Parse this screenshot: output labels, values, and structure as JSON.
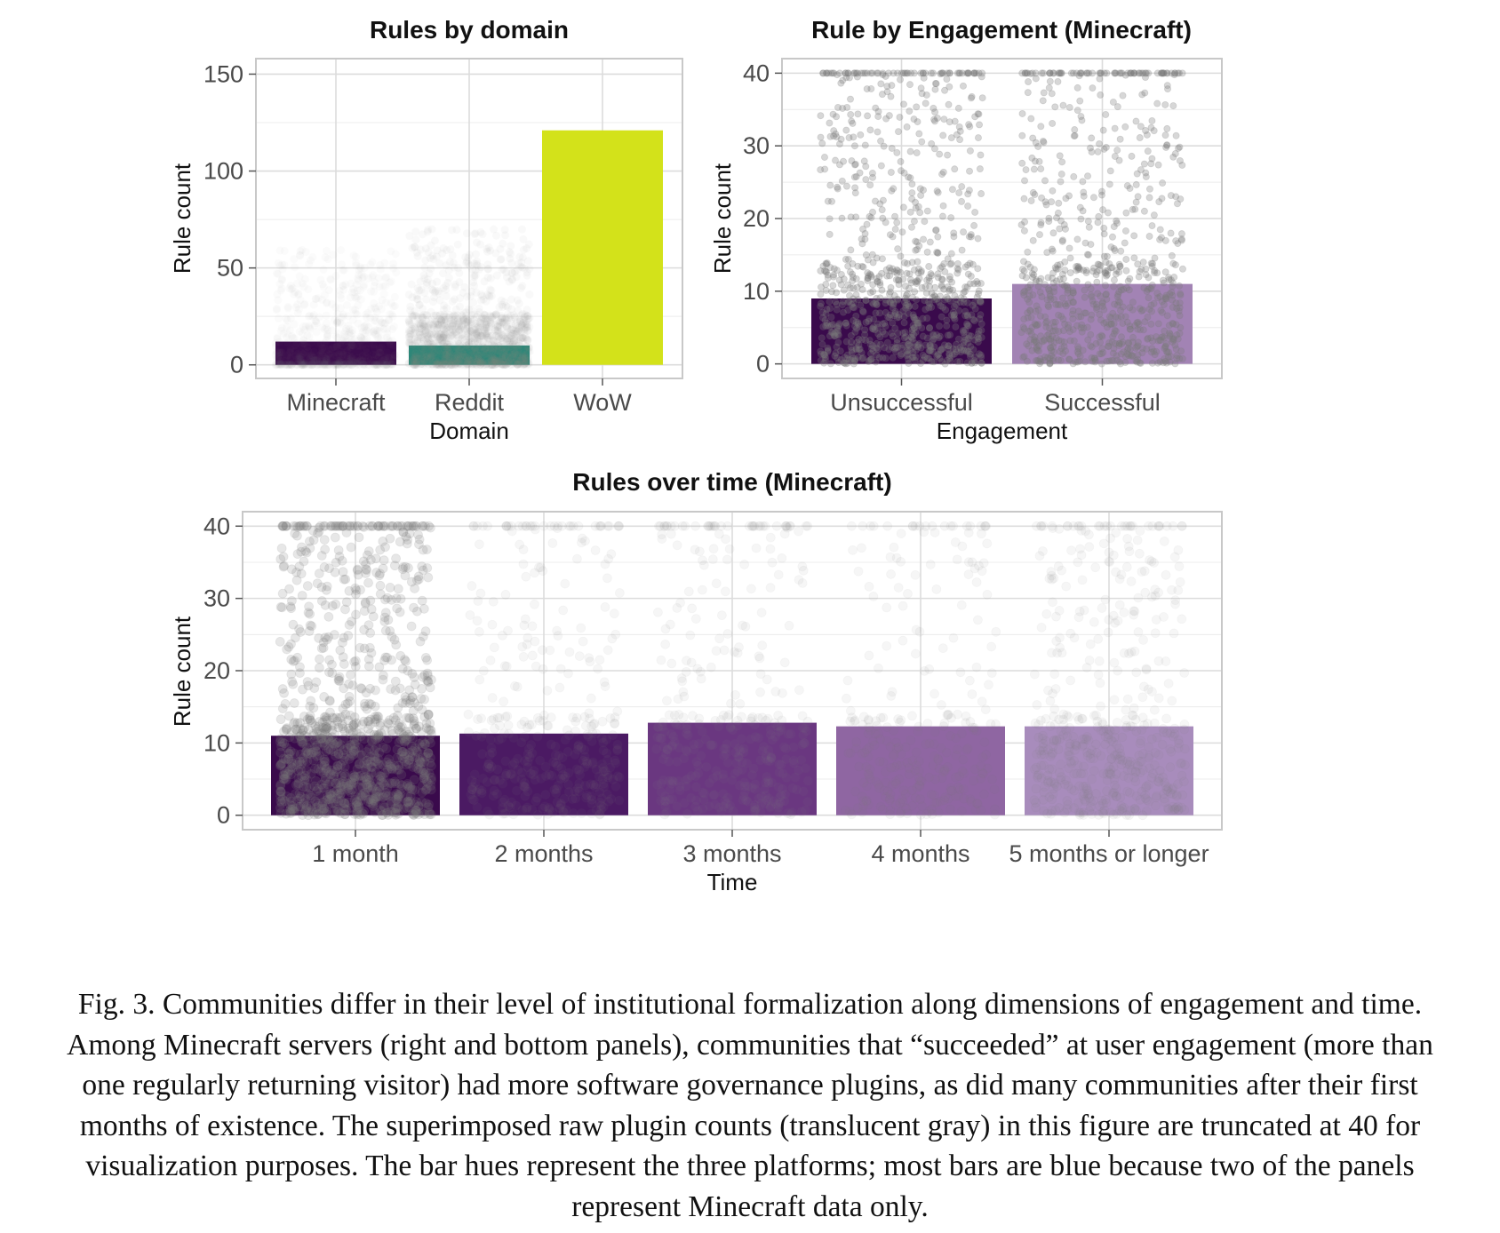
{
  "chart_data": [
    {
      "type": "bar",
      "title": "Rules by domain",
      "xlabel": "Domain",
      "ylabel": "Rule count",
      "categories": [
        "Minecraft",
        "Reddit",
        "WoW"
      ],
      "values": [
        12,
        10,
        121
      ],
      "colors": [
        "#3a0a4c",
        "#1f8778",
        "#d3e21a"
      ],
      "ylim": [
        -7,
        158
      ],
      "yticks": [
        0,
        50,
        100,
        150
      ],
      "overlay": "translucent gray raw counts",
      "grid": true
    },
    {
      "type": "bar",
      "title": "Rule by Engagement (Minecraft)",
      "xlabel": "Engagement",
      "ylabel": "Rule count",
      "categories": [
        "Unsuccessful",
        "Successful"
      ],
      "values": [
        9,
        11
      ],
      "colors": [
        "#3a0a4c",
        "#a283b4"
      ],
      "ylim": [
        -2,
        42
      ],
      "yticks": [
        0,
        10,
        20,
        30,
        40
      ],
      "overlay": "translucent gray raw counts",
      "grid": true
    },
    {
      "type": "bar",
      "title": "Rules over time (Minecraft)",
      "xlabel": "Time",
      "ylabel": "Rule count",
      "categories": [
        "1 month",
        "2 months",
        "3 months",
        "4 months",
        "5 months or longer"
      ],
      "values": [
        11,
        11.3,
        12.8,
        12.3,
        12.3
      ],
      "colors": [
        "#3a0a4c",
        "#4b1a63",
        "#6a3780",
        "#8f66a2",
        "#a88cbc"
      ],
      "ylim": [
        -2,
        42
      ],
      "yticks": [
        0,
        10,
        20,
        30,
        40
      ],
      "overlay": "translucent gray raw counts",
      "grid": true
    }
  ],
  "caption": "Fig. 3. Communities differ in their level of institutional formalization along dimensions of engagement and time. Among Minecraft servers (right and bottom panels), communities that “succeeded” at user engagement (more than one regularly returning visitor) had more software governance plugins, as did many communities after their first months of existence. The superimposed raw plugin counts (translucent gray) in this figure are truncated at 40 for visualization purposes. The bar hues represent the three platforms; most bars are blue because two of the panels represent Minecraft data only."
}
